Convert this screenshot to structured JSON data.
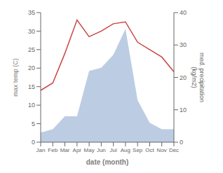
{
  "chart_data": {
    "type": "line",
    "categories": [
      "Jan",
      "Feb",
      "Mar",
      "Apr",
      "May",
      "Jun",
      "Jul",
      "Aug",
      "Sep",
      "Oct",
      "Nov",
      "Dec"
    ],
    "series": [
      {
        "type": "area",
        "axis": "y2",
        "color": "#b0c4de",
        "values": [
          3,
          4,
          8,
          8,
          22,
          23,
          27,
          35,
          13,
          6,
          4,
          4
        ]
      },
      {
        "type": "line",
        "color": "#cc4444",
        "values": [
          14,
          16,
          24,
          33,
          28.5,
          30,
          32,
          32.5,
          27,
          25,
          23,
          19
        ]
      }
    ],
    "xlabel": "date (month)",
    "ylabel": "max temp (C)",
    "y2label": "med. precipitation\n(kg/m2)",
    "ylim": [
      0,
      35
    ],
    "yticks": [
      0,
      5,
      10,
      15,
      20,
      25,
      30,
      35
    ],
    "y2lim": [
      0,
      40
    ],
    "y2ticks": [
      0,
      10,
      20,
      30,
      40
    ],
    "grid": false
  }
}
